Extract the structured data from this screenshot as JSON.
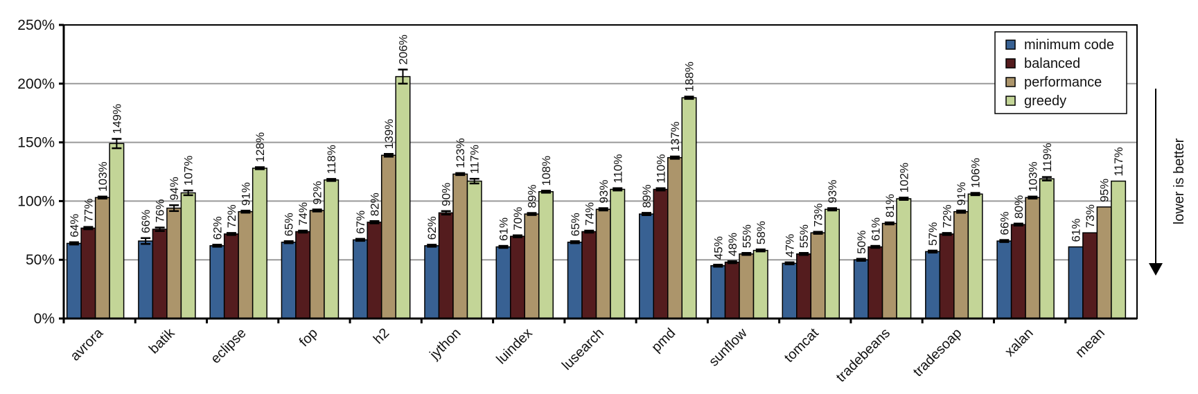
{
  "chart_data": {
    "type": "bar",
    "title": "",
    "xlabel": "",
    "ylabel": "",
    "ylim": [
      0,
      250
    ],
    "yticks": [
      "0%",
      "50%",
      "100%",
      "150%",
      "200%",
      "250%"
    ],
    "ytick_values": [
      0,
      50,
      100,
      150,
      200,
      250
    ],
    "grid": true,
    "legend_position": "top-right",
    "annotation": "lower is better",
    "categories": [
      "avrora",
      "batik",
      "eclipse",
      "fop",
      "h2",
      "jython",
      "luindex",
      "lusearch",
      "pmd",
      "sunflow",
      "tomcat",
      "tradebeans",
      "tradesoap",
      "xalan",
      "mean"
    ],
    "series": [
      {
        "name": "minimum code",
        "color": "#386193",
        "values": [
          64,
          66,
          62,
          65,
          67,
          62,
          61,
          65,
          89,
          45,
          47,
          50,
          57,
          66,
          61
        ],
        "errors": [
          1,
          2.5,
          0.5,
          0.5,
          0.8,
          0.5,
          0.5,
          0.5,
          1,
          0.5,
          0.5,
          0.5,
          0.5,
          0.5,
          0
        ],
        "labels": [
          "64%",
          "66%",
          "62%",
          "65%",
          "67%",
          "62%",
          "61%",
          "65%",
          "89%",
          "45%",
          "47%",
          "50%",
          "57%",
          "66%",
          "61%"
        ]
      },
      {
        "name": "balanced",
        "color": "#541c1e",
        "values": [
          77,
          76,
          72,
          74,
          82,
          90,
          70,
          74,
          110,
          48,
          55,
          61,
          72,
          80,
          73
        ],
        "errors": [
          1,
          1.5,
          0.5,
          0.5,
          1,
          1.5,
          0.5,
          0.5,
          1,
          0.5,
          0.8,
          0.5,
          0.5,
          0.5,
          0
        ],
        "labels": [
          "77%",
          "76%",
          "72%",
          "74%",
          "82%",
          "90%",
          "70%",
          "74%",
          "110%",
          "48%",
          "55%",
          "61%",
          "72%",
          "80%",
          "73%"
        ]
      },
      {
        "name": "performance",
        "color": "#ac956b",
        "values": [
          103,
          94,
          91,
          92,
          139,
          123,
          89,
          93,
          137,
          55,
          73,
          81,
          91,
          103,
          95
        ],
        "errors": [
          0.8,
          2.5,
          0.5,
          0.5,
          1.2,
          0.8,
          0.5,
          1,
          1,
          0.5,
          0.8,
          0.8,
          1,
          0.5,
          0
        ],
        "labels": [
          "103%",
          "94%",
          "91%",
          "92%",
          "139%",
          "123%",
          "89%",
          "93%",
          "137%",
          "55%",
          "73%",
          "81%",
          "91%",
          "103%",
          "95%"
        ]
      },
      {
        "name": "greedy",
        "color": "#c3d597",
        "values": [
          149,
          107,
          128,
          118,
          206,
          117,
          108,
          110,
          188,
          58,
          93,
          102,
          106,
          119,
          117
        ],
        "errors": [
          4,
          2,
          0.5,
          0.5,
          6,
          2,
          0.5,
          1,
          1,
          0.5,
          1,
          1,
          1,
          1.5,
          0
        ],
        "labels": [
          "149%",
          "107%",
          "128%",
          "118%",
          "206%",
          "117%",
          "108%",
          "110%",
          "188%",
          "58%",
          "93%",
          "102%",
          "106%",
          "119%",
          "117%"
        ]
      }
    ]
  }
}
